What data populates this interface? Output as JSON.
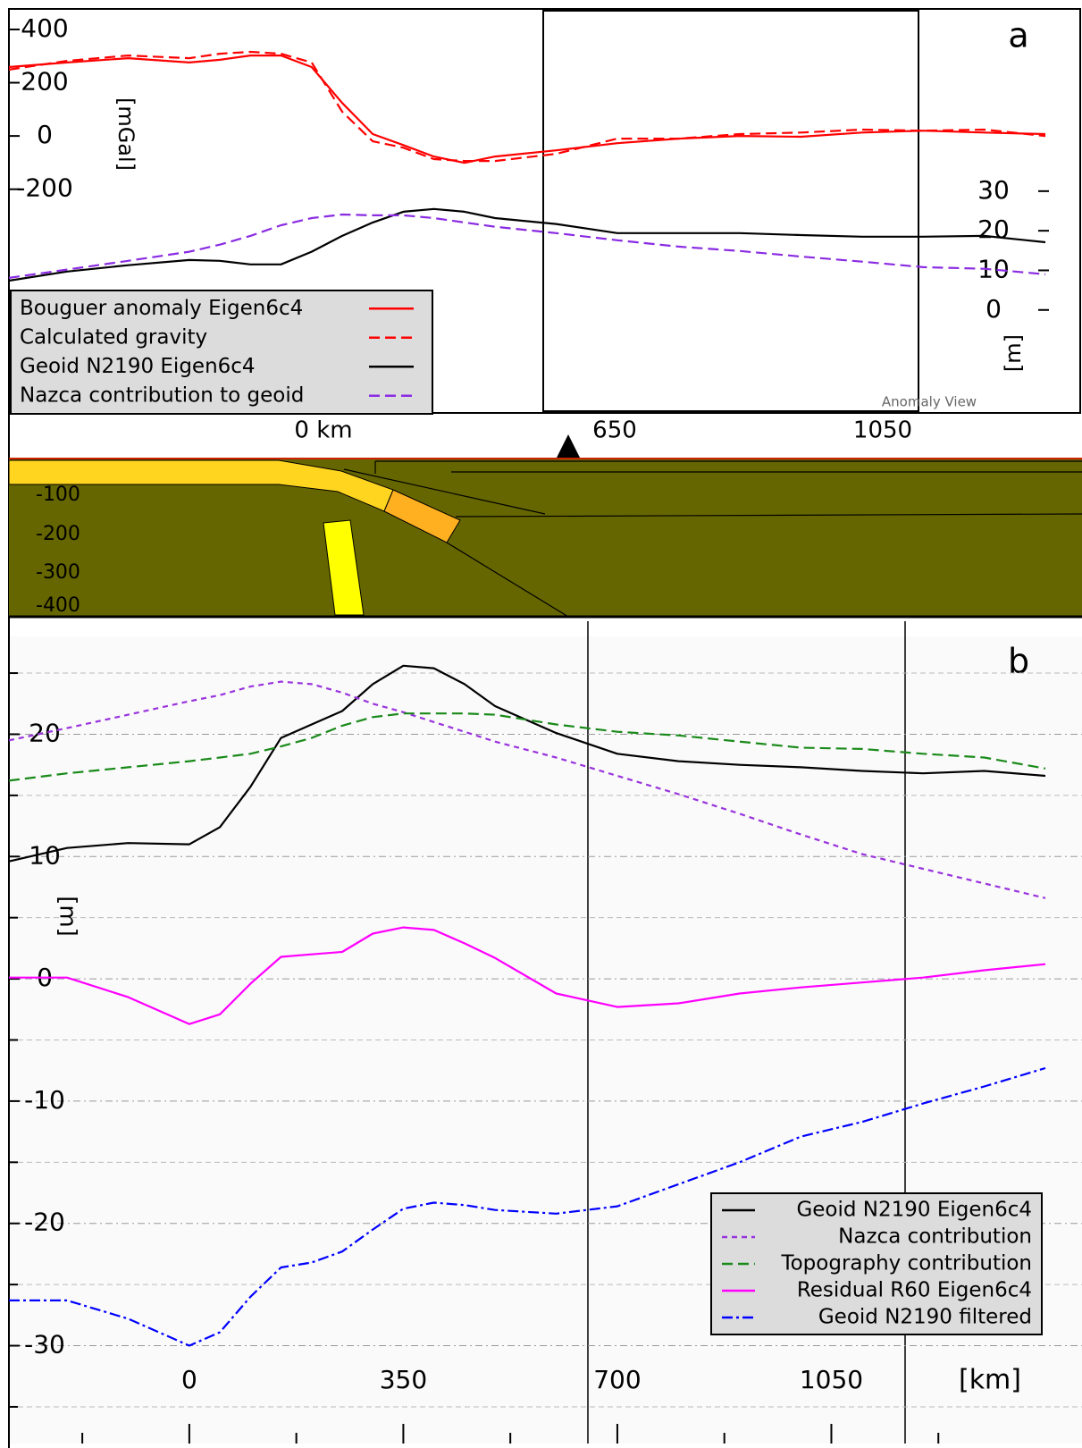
{
  "chart_data": [
    {
      "type": "line",
      "panel_label": "a",
      "ylabel": "[mGal]",
      "y2label": "[m]",
      "annotation": "Anomaly View",
      "x": [
        -295,
        -200,
        -100,
        0,
        50,
        100,
        150,
        200,
        250,
        300,
        350,
        400,
        450,
        500,
        600,
        700,
        800,
        900,
        1000,
        1100,
        1200,
        1300,
        1400
      ],
      "xlim": [
        -295,
        1400
      ],
      "ylim": [
        -1040,
        477
      ],
      "yticks": [
        400,
        200,
        0,
        -200
      ],
      "y2lim": [
        -26,
        76
      ],
      "y2ticks": [
        30,
        20,
        10,
        0
      ],
      "grid": false,
      "legend": "lower left",
      "series": [
        {
          "name": "Bouguer anomaly Eigen6c4",
          "color": "#ff0000",
          "dash": "solid",
          "values": [
            259,
            276,
            292,
            276,
            286,
            302,
            302,
            259,
            124,
            7,
            -34,
            -77,
            -101,
            -77,
            -54,
            -27,
            -10,
            0,
            -3,
            13,
            20,
            13,
            7
          ]
        },
        {
          "name": "Calculated gravity",
          "color": "#ff0000",
          "dash": "dashed",
          "values": [
            249,
            282,
            302,
            292,
            309,
            316,
            309,
            276,
            91,
            -20,
            -44,
            -87,
            -94,
            -94,
            -67,
            -10,
            -10,
            7,
            13,
            24,
            20,
            24,
            0
          ]
        },
        {
          "name": "Geoid N2190 Eigen6c4",
          "color": "#000000",
          "dash": "solid",
          "axis": "y2",
          "values": [
            7.4,
            9.7,
            11.3,
            12.6,
            12.4,
            11.5,
            11.5,
            14.7,
            18.7,
            22.1,
            24.8,
            25.5,
            24.8,
            23.2,
            21.7,
            19.4,
            19.4,
            19.4,
            18.9,
            18.5,
            18.5,
            18.7,
            17.1
          ]
        },
        {
          "name": "Nazca contribution to geoid",
          "color": "#8a2be2",
          "dash": "dashed",
          "axis": "y2",
          "values": [
            8.1,
            10.2,
            12.4,
            14.7,
            16.5,
            18.7,
            21.4,
            23.2,
            24.1,
            23.9,
            23.9,
            23.2,
            22.1,
            21.0,
            19.4,
            17.6,
            16.0,
            14.9,
            13.5,
            12.2,
            10.8,
            10.4,
            9.0
          ]
        }
      ]
    },
    {
      "type": "line",
      "panel_label": "b",
      "xlabel": "[km]",
      "ylabel": "[m]",
      "x": [
        -295,
        -200,
        -100,
        0,
        50,
        100,
        150,
        200,
        250,
        300,
        350,
        400,
        450,
        500,
        600,
        700,
        800,
        900,
        1000,
        1100,
        1200,
        1300,
        1400
      ],
      "xlim": [
        -295,
        1400
      ],
      "ylim": [
        -38,
        28
      ],
      "xticks": [
        0,
        350,
        700,
        1050
      ],
      "minor_xticks": [
        -175,
        175,
        525,
        875,
        1225
      ],
      "yticks": [
        -30,
        -20,
        -10,
        0,
        10,
        20
      ],
      "minor_yticks": [
        -35,
        -25,
        -15,
        -5,
        5,
        15,
        25
      ],
      "grid": true,
      "legend": "lower right",
      "series": [
        {
          "name": "Geoid N2190 Eigen6c4",
          "color": "#000000",
          "dash": "solid",
          "values": [
            9.6,
            10.7,
            11.1,
            11.0,
            12.4,
            15.7,
            19.7,
            20.8,
            21.9,
            24.1,
            25.6,
            25.4,
            24.1,
            22.3,
            20.1,
            18.4,
            17.8,
            17.5,
            17.3,
            17.0,
            16.8,
            17.0,
            16.6
          ]
        },
        {
          "name": "Nazca contribution",
          "color": "#9933dd",
          "dash": "dotted",
          "values": [
            19.5,
            20.5,
            21.6,
            22.7,
            23.2,
            23.9,
            24.3,
            24.1,
            23.4,
            22.5,
            21.8,
            21.0,
            20.2,
            19.4,
            18.1,
            16.6,
            15.1,
            13.5,
            11.8,
            10.2,
            9.0,
            7.8,
            6.6
          ]
        },
        {
          "name": "Topography contribution",
          "color": "#1a8a1a",
          "dash": "dashed",
          "values": [
            16.2,
            16.8,
            17.3,
            17.8,
            18.1,
            18.4,
            19.0,
            19.7,
            20.7,
            21.4,
            21.7,
            21.7,
            21.7,
            21.6,
            20.8,
            20.2,
            19.9,
            19.4,
            18.9,
            18.8,
            18.4,
            18.1,
            17.2
          ]
        },
        {
          "name": "Residual R60 Eigen6c4",
          "color": "#ff00ff",
          "dash": "solid",
          "values": [
            0.1,
            0.1,
            -1.5,
            -3.7,
            -2.9,
            -0.4,
            1.8,
            2.0,
            2.2,
            3.7,
            4.2,
            4.0,
            2.9,
            1.7,
            -1.2,
            -2.3,
            -2.0,
            -1.2,
            -0.7,
            -0.3,
            0.1,
            0.7,
            1.2
          ]
        },
        {
          "name": "Geoid N2190 filtered",
          "color": "#0000ff",
          "dash": "dashdot",
          "values": [
            -26.3,
            -26.3,
            -27.8,
            -30.0,
            -28.9,
            -26.0,
            -23.6,
            -23.2,
            -22.3,
            -20.5,
            -18.8,
            -18.3,
            -18.5,
            -18.9,
            -19.2,
            -18.6,
            -16.8,
            -15.0,
            -12.9,
            -11.7,
            -10.2,
            -8.8,
            -7.3
          ]
        }
      ]
    }
  ],
  "section": {
    "distance_labels": [
      "0 km",
      "650",
      "1050"
    ],
    "depth_labels": [
      "-100",
      "-200",
      "-300",
      "-400"
    ]
  }
}
